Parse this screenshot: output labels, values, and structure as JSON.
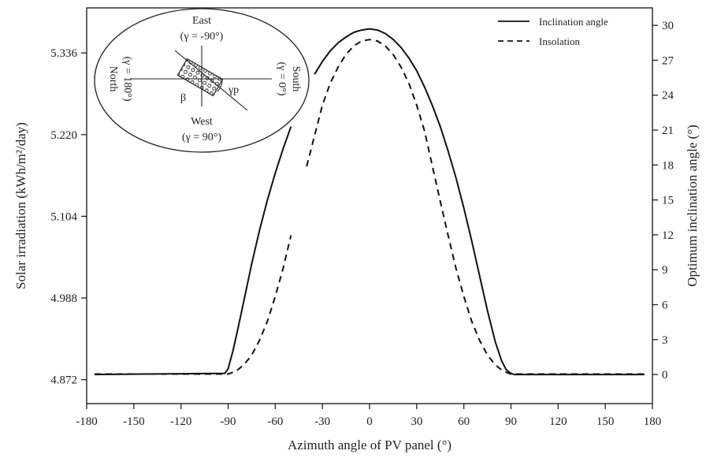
{
  "chart_data": {
    "type": "line",
    "title": "",
    "xlabel": "Azimuth angle of PV panel (°)",
    "ylabel_left": "Solar irradiation (kWh/m²/day)",
    "ylabel_right": "Optimum inclination angle (°)",
    "xlim": [
      -180,
      180
    ],
    "xticks": [
      "-180",
      "-150",
      "-120",
      "-90",
      "-60",
      "-30",
      "0",
      "30",
      "60",
      "90",
      "120",
      "150",
      "180"
    ],
    "ylim_left": [
      4.838,
      5.4
    ],
    "yticks_left": [
      "4.872",
      "4.988",
      "5.104",
      "5.220",
      "5.336"
    ],
    "ylim_right": [
      -2.5,
      31.5
    ],
    "yticks_right": [
      "0",
      "3",
      "6",
      "9",
      "12",
      "15",
      "18",
      "21",
      "24",
      "27",
      "30"
    ],
    "grid": false,
    "legend": {
      "position": "top-right",
      "entries": [
        {
          "label": "Inclination angle",
          "style": "solid"
        },
        {
          "label": "Insolation",
          "style": "dashed"
        }
      ]
    },
    "series": [
      {
        "name": "Inclination angle",
        "axis": "right",
        "style": "solid",
        "x": [
          -175,
          -92,
          -90,
          -87,
          -84,
          -80,
          -75,
          -70,
          -65,
          -60,
          -55,
          -50,
          -35,
          -30,
          -25,
          -20,
          -15,
          -10,
          -5,
          0,
          5,
          10,
          15,
          20,
          25,
          30,
          35,
          40,
          45,
          50,
          55,
          60,
          65,
          70,
          75,
          80,
          84,
          87,
          90,
          92,
          175
        ],
        "y": [
          0.0,
          0.1,
          0.5,
          2.0,
          3.8,
          6.3,
          9.5,
          12.4,
          15.0,
          17.3,
          19.4,
          21.3,
          25.8,
          26.9,
          27.8,
          28.5,
          29.0,
          29.4,
          29.6,
          29.7,
          29.6,
          29.3,
          28.8,
          28.1,
          27.2,
          26.1,
          24.7,
          23.1,
          21.3,
          19.2,
          16.9,
          14.3,
          11.5,
          8.5,
          5.5,
          2.8,
          1.2,
          0.4,
          0.1,
          0.0,
          0.0
        ],
        "breaks": [
          [
            -50,
            -35
          ]
        ]
      },
      {
        "name": "Insolation",
        "axis": "left",
        "style": "dashed",
        "x": [
          -175,
          -90,
          -85,
          -80,
          -75,
          -70,
          -65,
          -60,
          -55,
          -50,
          -40,
          -30,
          -25,
          -20,
          -15,
          -10,
          -5,
          0,
          5,
          10,
          15,
          20,
          25,
          30,
          35,
          40,
          45,
          50,
          55,
          60,
          65,
          70,
          75,
          80,
          85,
          90,
          175
        ],
        "y": [
          4.88,
          4.88,
          4.884,
          4.893,
          4.907,
          4.928,
          4.955,
          4.99,
          5.03,
          5.077,
          5.175,
          5.262,
          5.293,
          5.316,
          5.334,
          5.346,
          5.353,
          5.355,
          5.353,
          5.346,
          5.334,
          5.316,
          5.293,
          5.262,
          5.225,
          5.175,
          5.125,
          5.077,
          5.03,
          4.99,
          4.955,
          4.928,
          4.907,
          4.893,
          4.884,
          4.88,
          4.88
        ],
        "breaks": [
          [
            -50,
            -40
          ]
        ]
      }
    ],
    "inset": {
      "top_label": "East",
      "top_sub": "(γ = -90°)",
      "bottom_label": "West",
      "bottom_sub": "(γ = 90°)",
      "left_label": "North",
      "left_sub": "(γ = 180°)",
      "right_label": "South",
      "right_sub": "(γ = 0°)",
      "beta_label": "β",
      "gamma_label": "γp"
    }
  }
}
